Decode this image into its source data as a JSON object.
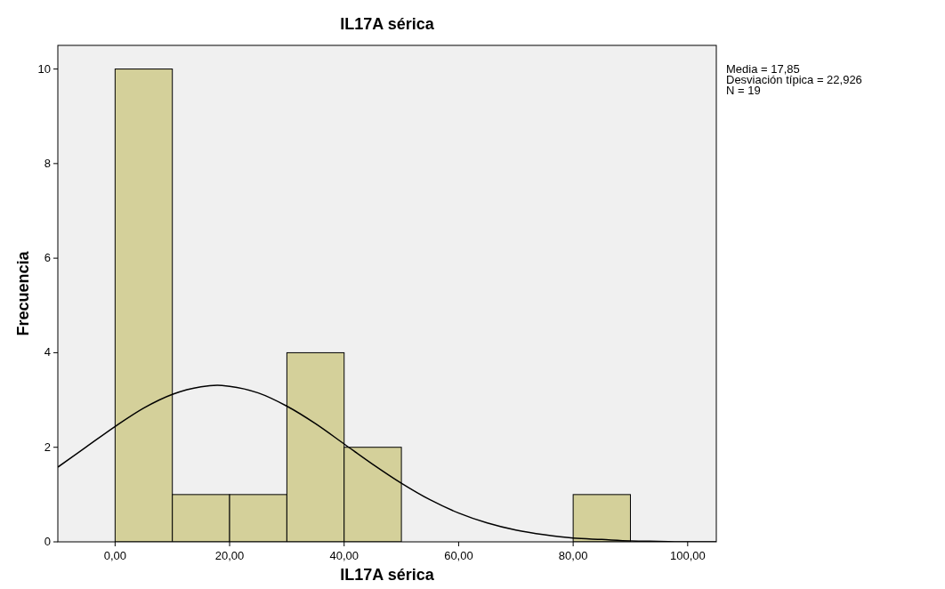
{
  "chart_data": {
    "type": "histogram",
    "title": "IL17A sérica",
    "xlabel": "IL17A sérica",
    "ylabel": "Frecuencia",
    "series": [
      {
        "color": "#d4d09a",
        "bins": [
          0,
          10,
          20,
          30,
          40,
          50,
          60,
          70,
          80,
          90
        ],
        "values": [
          10,
          1,
          1,
          4,
          2,
          0,
          0,
          0,
          1
        ]
      },
      {
        "type": "line",
        "color": "#000000",
        "x": [
          -10,
          -5,
          0,
          5,
          10,
          15,
          17.85,
          20,
          25,
          30,
          35,
          40,
          45,
          50,
          55,
          60,
          65,
          70,
          75,
          80,
          85,
          90,
          95,
          100,
          105
        ],
        "values": [
          1.58,
          2.01,
          2.44,
          2.83,
          3.12,
          3.28,
          3.31,
          3.29,
          3.15,
          2.87,
          2.5,
          2.07,
          1.64,
          1.24,
          0.89,
          0.61,
          0.4,
          0.25,
          0.15,
          0.08,
          0.05,
          0.02,
          0.01,
          0,
          0
        ]
      }
    ],
    "xlim": [
      -10,
      105
    ],
    "ylim": [
      0,
      10.5
    ],
    "xticks": [
      {
        "value": 0,
        "label": "0,00"
      },
      {
        "value": 20,
        "label": "20,00"
      },
      {
        "value": 40,
        "label": "40,00"
      },
      {
        "value": 60,
        "label": "60,00"
      },
      {
        "value": 80,
        "label": "80,00"
      },
      {
        "value": 100,
        "label": "100,00"
      }
    ],
    "yticks": [
      0,
      2,
      4,
      6,
      8,
      10
    ],
    "annotations": [
      "Media = 17,85",
      "Desviación típica = 22,926",
      "N = 19"
    ]
  }
}
